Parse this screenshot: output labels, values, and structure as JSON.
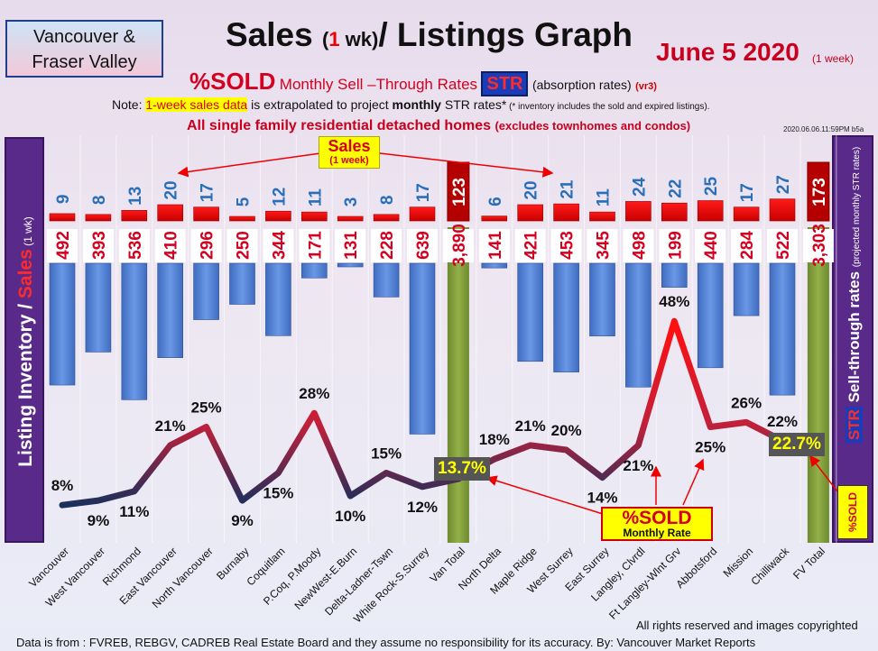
{
  "header": {
    "region_line1": "Vancouver &",
    "region_line2": "Fraser Valley",
    "title_part1": "Sales ",
    "title_paren_open": "(",
    "title_num": "1",
    "title_wk": " wk)",
    "title_part2": "/ Listings Graph",
    "date": "June 5  2020",
    "date_sub": "(1 week)",
    "pct_sold": "%SOLD",
    "msr": "Monthly Sell –Through Rates",
    "str": "STR",
    "absorption": "(absorption rates)",
    "version": "(vr3)",
    "note_prefix": "Note: ",
    "note_highlight": "1-week sales data",
    "note_mid": " is extrapolated to project ",
    "note_bold": "monthly",
    "note_end": " STR rates*",
    "note_tiny": " (* inventory includes the sold and expired listings).",
    "scope_main": "All single family residential detached homes ",
    "scope_sub": "(excludes townhomes and condos)",
    "timestamp": "2020.06.06.11:59PM b5a"
  },
  "side_labels": {
    "left_main": "Listing Inventory / ",
    "left_sales": "Sales",
    "left_sub": " (1 wk)",
    "right_str": "STR",
    "right_main": " Sell-through rates ",
    "right_sub": "(projected monthly STR rates)",
    "right_sold": "%SOLD"
  },
  "callouts": {
    "sales_l1": "Sales",
    "sales_l2": "(1 week)",
    "sold_l1": "%SOLD",
    "sold_l2": "Monthly Rate",
    "van_total_pct": "13.7%",
    "fv_total_pct": "22.7%"
  },
  "footer": {
    "rights": "All rights reserved and  images copyrighted",
    "source": "Data is from : FVREB, REBGV, CADREB Real Estate Board and they assume no responsibility for its accuracy. By: Vancouver Market Reports"
  },
  "colors": {
    "sales_bar": "#ee0000",
    "listing_bar": "#4a7bd1",
    "total_bar": "#7a9a3a",
    "line_low": "#1b2f5c",
    "line_high": "#ff1010",
    "sales_text": "#2a6fb8",
    "listing_text": "#d40020"
  },
  "chart_data": {
    "type": "bar",
    "categories": [
      "Vancouver",
      "West Vancouver",
      "Richmond",
      "East Vancouver",
      "North Vancouver",
      "Burnaby",
      "Coquitlam",
      "P.Coq, P.Moody",
      "NewWest-E.Burn",
      "Delta-Ladner-Tswn",
      "White Rock-S.Surrey",
      "Van Total",
      "North Delta",
      "Maple Ridge",
      "West Surrey",
      "East Surrey",
      "Langley, Clvrdl",
      "Ft Langley-Wlnt Grv",
      "Abbotsford",
      "Mission",
      "Chilliwack",
      "FV Total"
    ],
    "series": [
      {
        "name": "Sales",
        "values": [
          9,
          8,
          13,
          20,
          17,
          5,
          12,
          11,
          3,
          8,
          17,
          123,
          6,
          20,
          21,
          11,
          24,
          22,
          25,
          17,
          27,
          173
        ],
        "labels": [
          "9",
          "8",
          "13",
          "20",
          "17",
          "5",
          "12",
          "11",
          "3",
          "8",
          "17",
          "123",
          "6",
          "20",
          "21",
          "11",
          "24",
          "22",
          "25",
          "17",
          "27",
          "173"
        ]
      },
      {
        "name": "Listing Inventory",
        "values": [
          492,
          393,
          536,
          410,
          296,
          250,
          344,
          171,
          131,
          228,
          639,
          3890,
          141,
          421,
          453,
          345,
          498,
          199,
          440,
          284,
          522,
          3303
        ],
        "labels": [
          "492",
          "393",
          "536",
          "410",
          "296",
          "250",
          "344",
          "171",
          "131",
          "228",
          "639",
          "3,890",
          "141",
          "421",
          "453",
          "345",
          "498",
          "199",
          "440",
          "284",
          "522",
          "3,303"
        ]
      },
      {
        "name": "%SOLD",
        "values": [
          8,
          9,
          11,
          21,
          25,
          9,
          15,
          28,
          10,
          15,
          12,
          null,
          18,
          21,
          20,
          14,
          21,
          48,
          25,
          26,
          22,
          null
        ],
        "labels": [
          "8%",
          "9%",
          "11%",
          "21%",
          "25%",
          "9%",
          "15%",
          "28%",
          "10%",
          "15%",
          "12%",
          "",
          "18%",
          "21%",
          "20%",
          "14%",
          "21%",
          "48%",
          "25%",
          "26%",
          "22%",
          ""
        ]
      }
    ],
    "totals_pct": {
      "Van Total": 13.7,
      "FV Total": 22.7
    },
    "title": "Sales (1 wk)/ Listings Graph",
    "ylabel": "Listing Inventory / Sales (1 wk)",
    "y2label": "STR Sell-through rates (projected monthly STR rates)"
  }
}
